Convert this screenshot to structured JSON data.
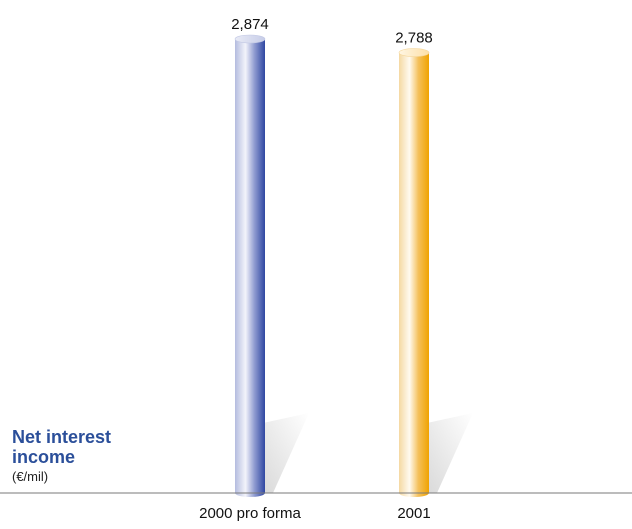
{
  "chart_data": {
    "type": "bar",
    "title": "Net interest income",
    "unit": "(€/mil)",
    "categories": [
      "2000 pro forma",
      "2001"
    ],
    "values": [
      2874,
      2788
    ],
    "value_labels": [
      "2,874",
      "2,788"
    ],
    "xlabel": "",
    "ylabel": "",
    "grid": false,
    "legend": "none"
  },
  "colors": {
    "series": [
      "#3b4fa6",
      "#f0a500"
    ],
    "title": "#2b4f9a",
    "axis": "#7a7a7a"
  }
}
